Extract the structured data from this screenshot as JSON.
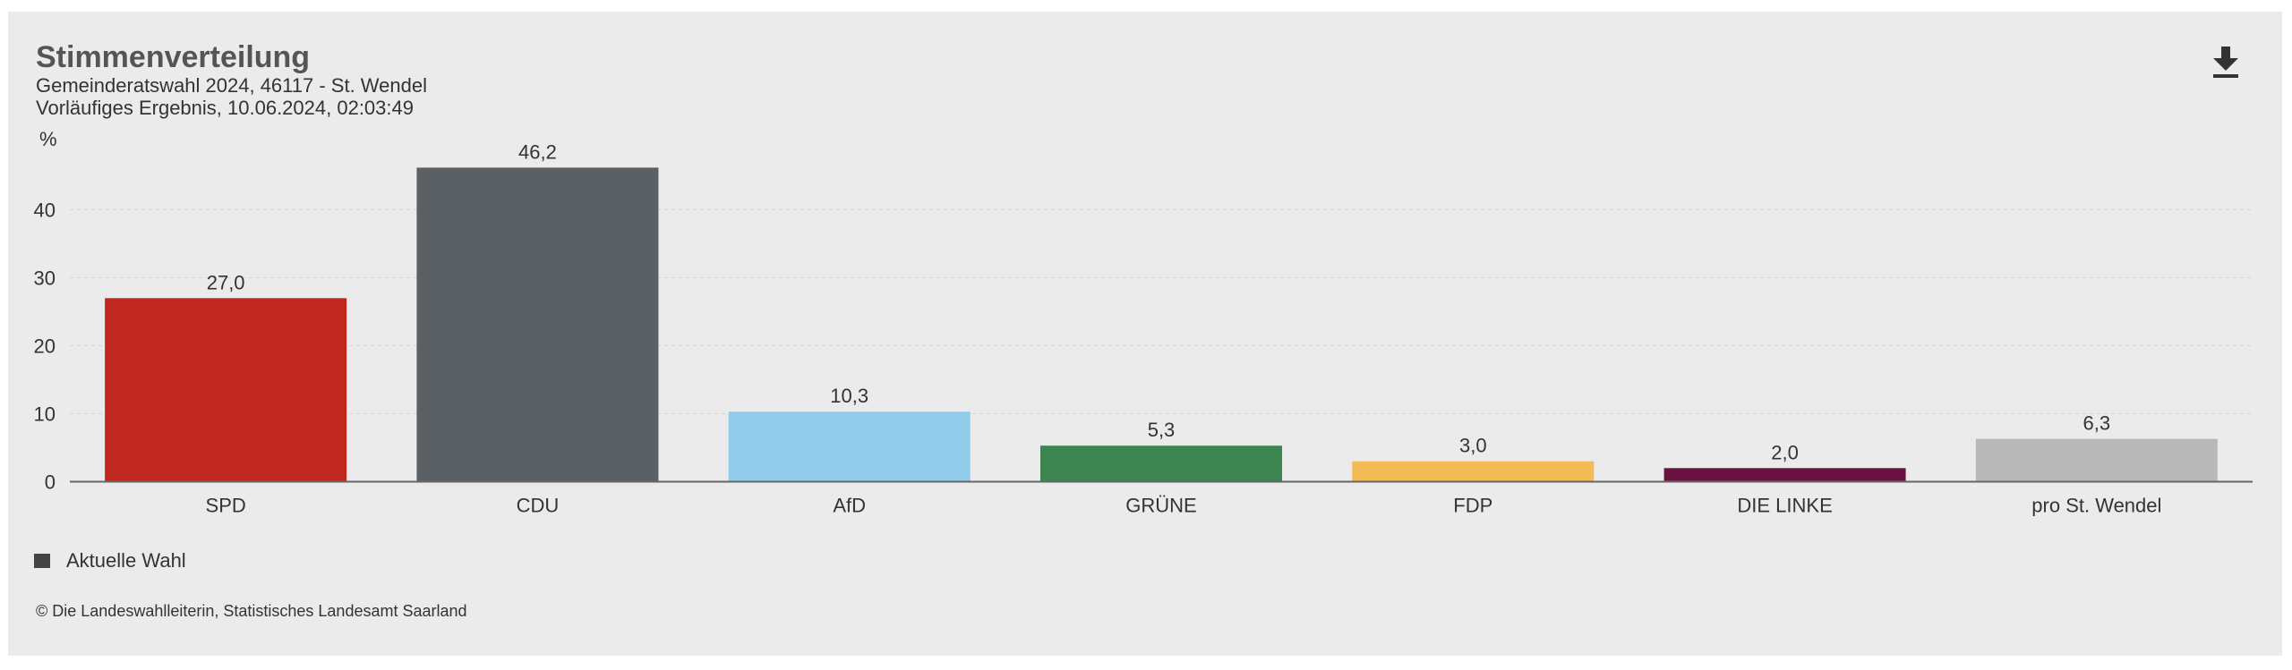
{
  "header": {
    "title": "Stimmenverteilung",
    "subtitle_line1": "Gemeinderatswahl 2024, 46117 - St. Wendel",
    "subtitle_line2": "Vorläufiges Ergebnis, 10.06.2024, 02:03:49",
    "download_icon": "download-icon"
  },
  "chart_data": {
    "type": "bar",
    "title": "Stimmenverteilung",
    "subtitle": "Gemeinderatswahl 2024, 46117 - St. Wendel",
    "xlabel": "",
    "ylabel": "%",
    "ylim": [
      0,
      50
    ],
    "yticks": [
      0,
      10,
      20,
      30,
      40
    ],
    "ytick_labels": [
      "0",
      "10",
      "20",
      "30",
      "40"
    ],
    "grid": true,
    "categories": [
      "SPD",
      "CDU",
      "AfD",
      "GRÜNE",
      "FDP",
      "DIE LINKE",
      "pro St. Wendel"
    ],
    "series": [
      {
        "name": "Aktuelle Wahl",
        "values": [
          27.0,
          46.2,
          10.3,
          5.3,
          3.0,
          2.0,
          6.3
        ],
        "value_labels": [
          "27,0",
          "46,2",
          "10,3",
          "5,3",
          "3,0",
          "2,0",
          "6,3"
        ],
        "colors": [
          "#c0271f",
          "#5a6063",
          "#93cbea",
          "#3c8551",
          "#f2bb55",
          "#6a1340",
          "#b8b8b8"
        ]
      }
    ],
    "legend_position": "bottom-left"
  },
  "legend": {
    "label": "Aktuelle Wahl",
    "color": "#444444"
  },
  "footer": {
    "credits": "© Die Landeswahlleiterin, Statistisches Landesamt Saarland"
  }
}
